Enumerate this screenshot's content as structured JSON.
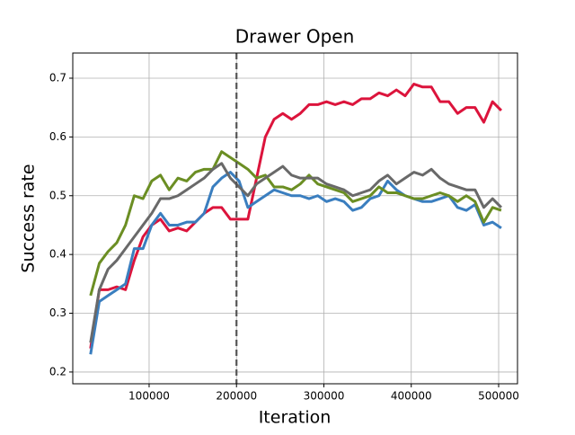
{
  "chart_data": {
    "type": "line",
    "title": "Drawer Open",
    "x_label": "Iteration",
    "y_label": "Success rate",
    "x": [
      33000,
      43000,
      53000,
      63000,
      73000,
      83000,
      93000,
      103000,
      113000,
      123000,
      133000,
      143000,
      153000,
      163000,
      173000,
      183000,
      193000,
      203000,
      213000,
      223000,
      233000,
      243000,
      253000,
      263000,
      273000,
      283000,
      293000,
      303000,
      313000,
      323000,
      333000,
      343000,
      353000,
      363000,
      373000,
      383000,
      393000,
      403000,
      413000,
      423000,
      433000,
      443000,
      453000,
      463000,
      473000,
      483000,
      493000,
      503000
    ],
    "series": [
      {
        "color": "#dc143c",
        "values": [
          0.24,
          0.34,
          0.34,
          0.345,
          0.34,
          0.39,
          0.43,
          0.45,
          0.46,
          0.44,
          0.445,
          0.44,
          0.455,
          0.47,
          0.48,
          0.48,
          0.46,
          0.46,
          0.46,
          0.53,
          0.6,
          0.63,
          0.64,
          0.63,
          0.64,
          0.655,
          0.655,
          0.66,
          0.655,
          0.66,
          0.655,
          0.665,
          0.665,
          0.675,
          0.67,
          0.68,
          0.67,
          0.69,
          0.685,
          0.685,
          0.66,
          0.66,
          0.64,
          0.65,
          0.65,
          0.625,
          0.66,
          0.645
        ]
      },
      {
        "color": "#3a7ebf",
        "values": [
          0.23,
          0.32,
          0.33,
          0.34,
          0.35,
          0.41,
          0.41,
          0.45,
          0.47,
          0.45,
          0.45,
          0.455,
          0.455,
          0.47,
          0.515,
          0.53,
          0.54,
          0.525,
          0.48,
          0.49,
          0.5,
          0.51,
          0.505,
          0.5,
          0.5,
          0.495,
          0.5,
          0.49,
          0.495,
          0.49,
          0.475,
          0.48,
          0.495,
          0.5,
          0.525,
          0.51,
          0.5,
          0.495,
          0.49,
          0.49,
          0.495,
          0.5,
          0.48,
          0.475,
          0.485,
          0.45,
          0.455,
          0.445
        ]
      },
      {
        "color": "#6b8e23",
        "values": [
          0.33,
          0.385,
          0.405,
          0.42,
          0.45,
          0.5,
          0.495,
          0.525,
          0.535,
          0.51,
          0.53,
          0.525,
          0.54,
          0.545,
          0.545,
          0.575,
          0.565,
          0.555,
          0.545,
          0.53,
          0.535,
          0.515,
          0.515,
          0.51,
          0.52,
          0.535,
          0.52,
          0.515,
          0.51,
          0.505,
          0.49,
          0.495,
          0.5,
          0.515,
          0.505,
          0.505,
          0.5,
          0.495,
          0.495,
          0.5,
          0.505,
          0.5,
          0.49,
          0.5,
          0.49,
          0.455,
          0.48,
          0.475
        ]
      },
      {
        "color": "#696969",
        "values": [
          0.25,
          0.34,
          0.375,
          0.39,
          0.41,
          0.43,
          0.45,
          0.47,
          0.495,
          0.495,
          0.5,
          0.51,
          0.52,
          0.53,
          0.545,
          0.555,
          0.53,
          0.515,
          0.5,
          0.52,
          0.53,
          0.54,
          0.55,
          0.535,
          0.53,
          0.53,
          0.53,
          0.52,
          0.515,
          0.51,
          0.5,
          0.505,
          0.51,
          0.525,
          0.535,
          0.52,
          0.53,
          0.54,
          0.535,
          0.545,
          0.53,
          0.52,
          0.515,
          0.51,
          0.51,
          0.48,
          0.495,
          0.48
        ]
      }
    ],
    "vline": 200000,
    "xlim": [
      12640,
      521580
    ],
    "xticks": [
      100000,
      200000,
      300000,
      400000,
      500000
    ],
    "ylim": [
      0.18,
      0.7428
    ],
    "yticks": [
      0.2,
      0.3,
      0.4,
      0.5,
      0.6,
      0.7
    ],
    "grid": true
  }
}
